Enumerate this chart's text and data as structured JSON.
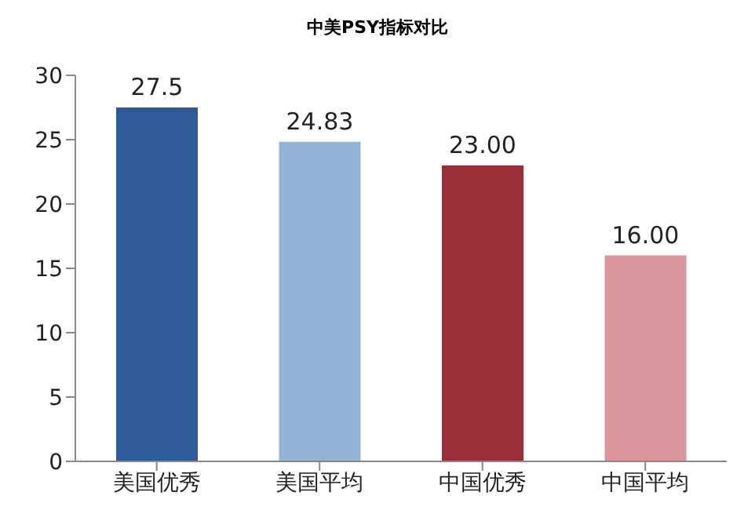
{
  "chart_data": {
    "type": "bar",
    "title": "中美PSY指标对比",
    "categories": [
      "美国优秀",
      "美国平均",
      "中国优秀",
      "中国平均"
    ],
    "values": [
      27.5,
      24.83,
      23,
      16
    ],
    "value_labels": [
      "27.5",
      "24.83",
      "23.00",
      "16.00"
    ],
    "colors": [
      "#2f5b97",
      "#95b3d7",
      "#9b2f38",
      "#d9959b"
    ],
    "ylim": [
      0,
      30
    ],
    "yticks": [
      0,
      5,
      10,
      15,
      20,
      25,
      30
    ],
    "grid": false,
    "legend": false
  }
}
